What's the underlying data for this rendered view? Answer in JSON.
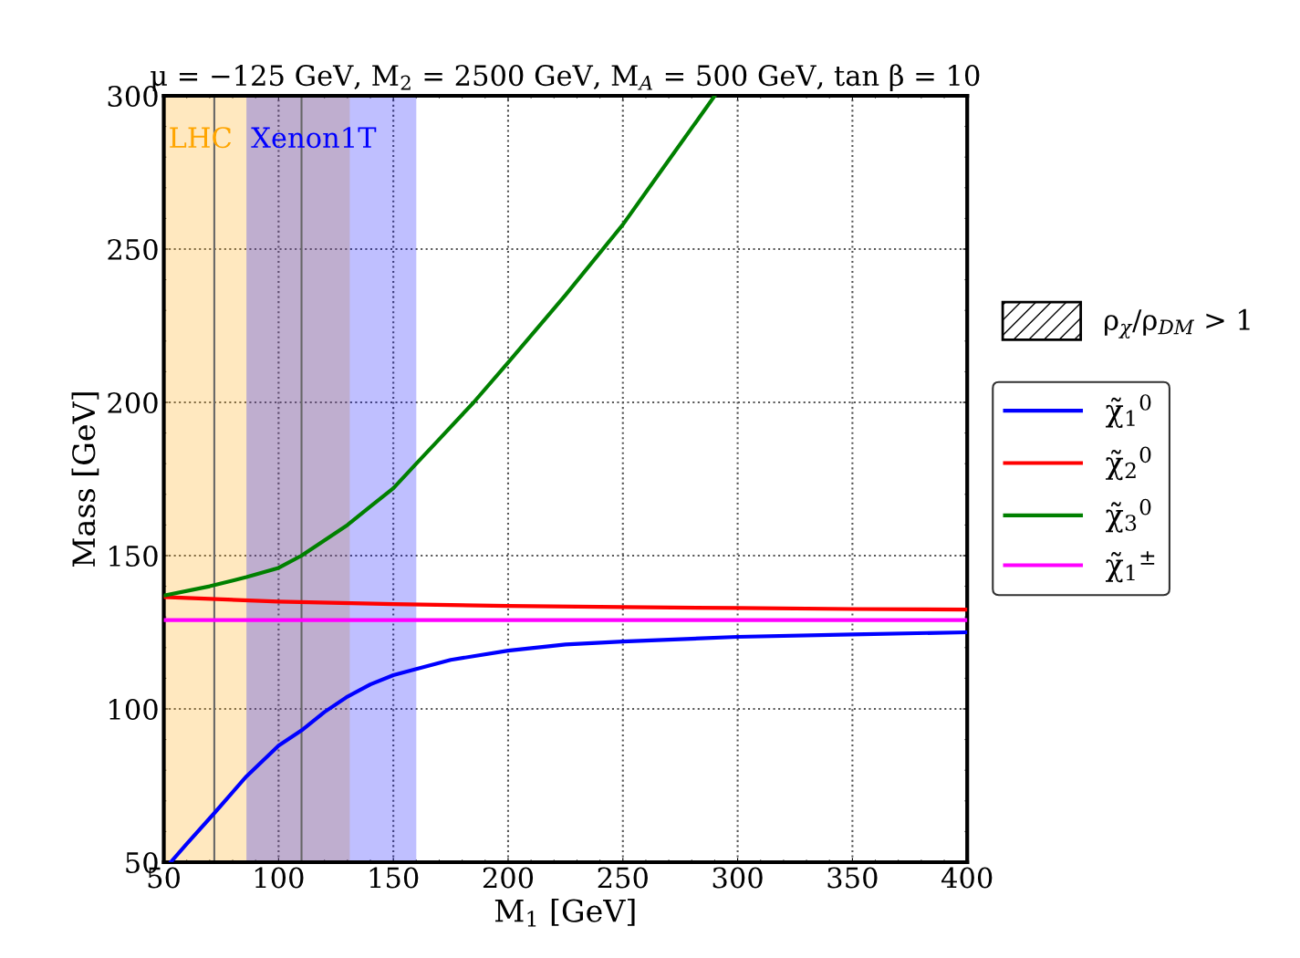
{
  "chart_data": {
    "type": "line",
    "title": "μ = −125 GeV, M$_{2}$ = 2500 GeV, M$_{A}$ = 500 GeV, tan β = 10",
    "xlabel": "M$_{1}$ [GeV]",
    "ylabel": "Mass [GeV]",
    "xlim": [
      50,
      400
    ],
    "xticks": [
      50,
      100,
      150,
      200,
      250,
      300,
      350,
      400
    ],
    "ylim": [
      50,
      300
    ],
    "yticks": [
      50,
      100,
      150,
      200,
      250,
      300
    ],
    "grid": true,
    "legend": "right",
    "line_style": "solid",
    "series": [
      {
        "name": "χ̃$_{1}$$^{0}$",
        "color": "#0000ff",
        "x": [
          53,
          60,
          72,
          86,
          100,
          110,
          120,
          130,
          140,
          150,
          160,
          175,
          200,
          225,
          250,
          300,
          350,
          400
        ],
        "values": [
          50,
          56,
          66,
          78,
          88,
          93,
          99,
          104,
          108,
          111,
          113,
          116,
          119,
          121,
          122,
          123.5,
          124.3,
          125
        ]
      },
      {
        "name": "χ̃$_{2}$$^{0}$",
        "color": "#ff0000",
        "x": [
          50,
          100,
          150,
          200,
          250,
          300,
          350,
          400
        ],
        "values": [
          136.5,
          135,
          134.2,
          133.6,
          133.2,
          132.9,
          132.6,
          132.4
        ]
      },
      {
        "name": "χ̃$_{3}$$^{0}$",
        "color": "#008000",
        "x": [
          50,
          70,
          86,
          100,
          110,
          120,
          130,
          140,
          150,
          160,
          170,
          185,
          200,
          225,
          250,
          270,
          290
        ],
        "values": [
          137,
          140,
          143,
          146,
          150,
          155,
          160,
          166,
          172,
          180,
          188,
          200,
          213,
          235,
          258,
          279,
          300
        ]
      },
      {
        "name": "χ̃$_{1}$$^{±}$",
        "color": "#ff00ff",
        "x": [
          50,
          400
        ],
        "values": [
          129,
          129
        ]
      }
    ],
    "bands": [
      {
        "axis": "x",
        "from": 50,
        "to": 131,
        "label": "LHC",
        "color": "#ffa500"
      },
      {
        "axis": "x",
        "from": 86,
        "to": 160,
        "label": "Xenon1T",
        "color": "#0000ff"
      }
    ],
    "ref_lines": [
      {
        "axis": "x",
        "value": 72,
        "color": "#666666",
        "line_style": "solid"
      },
      {
        "axis": "x",
        "value": 110,
        "color": "#666666",
        "line_style": "solid"
      }
    ],
    "annotations": [
      "ρ$_{χ}$/ρ$_{DM}$ > 1"
    ]
  }
}
